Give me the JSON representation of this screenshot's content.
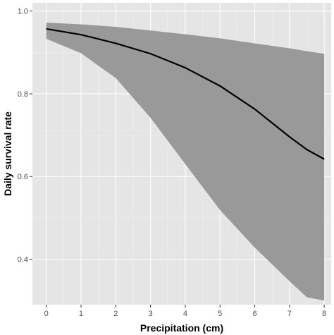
{
  "chart_data": {
    "type": "line",
    "title": "",
    "xlabel": "Precipitation (cm)",
    "ylabel": "Daily survival rate",
    "xlim": [
      -0.4,
      8.2
    ],
    "ylim": [
      0.29,
      1.02
    ],
    "x_ticks": [
      0,
      1,
      2,
      3,
      4,
      5,
      6,
      7,
      8
    ],
    "x_tick_labels": [
      "0",
      "1",
      "2",
      "3",
      "4",
      "5",
      "6",
      "7",
      "8"
    ],
    "y_ticks": [
      0.4,
      0.6,
      0.8,
      1.0
    ],
    "y_tick_labels": [
      "0.4",
      "0.6",
      "0.8",
      "1.0"
    ],
    "grid": true,
    "series": [
      {
        "line_color": "#000000",
        "band_color": "#999999",
        "x": [
          0,
          1,
          2,
          3,
          4,
          5,
          6,
          7,
          7.5,
          8
        ],
        "y": [
          0.957,
          0.943,
          0.922,
          0.897,
          0.863,
          0.819,
          0.763,
          0.696,
          0.665,
          0.642
        ],
        "lower": [
          0.933,
          0.898,
          0.838,
          0.742,
          0.63,
          0.519,
          0.428,
          0.347,
          0.308,
          0.3
        ],
        "upper": [
          0.972,
          0.968,
          0.962,
          0.953,
          0.944,
          0.934,
          0.922,
          0.91,
          0.903,
          0.897
        ]
      }
    ]
  },
  "colors": {
    "panel_background": "#e5e5e5",
    "grid_major": "#ffffff",
    "grid_minor": "#f2f2f2"
  }
}
